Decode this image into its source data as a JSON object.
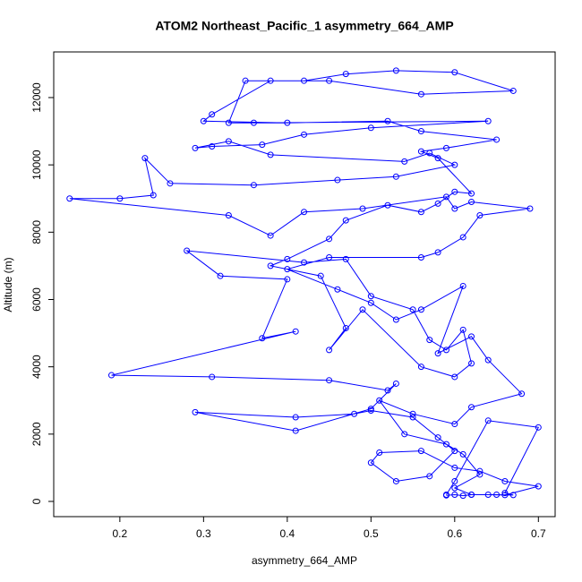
{
  "chart_data": {
    "type": "line",
    "title": "ATOM2 Northeast_Pacific_1 asymmetry_664_AMP",
    "x_label": "asymmetry_664_AMP",
    "y_label": "Altitude (m)",
    "color": "#0000ff",
    "markers": true,
    "grid": false,
    "xlim": [
      0.121,
      0.72
    ],
    "ylim": [
      -452,
      13356
    ],
    "xticks": [
      0.2,
      0.3,
      0.4,
      0.5,
      0.6,
      0.7
    ],
    "yticks": [
      0,
      2000,
      4000,
      6000,
      8000,
      10000,
      12000
    ],
    "x": [
      0.59,
      0.6,
      0.61,
      0.62,
      0.64,
      0.66,
      0.7,
      0.66,
      0.63,
      0.6,
      0.56,
      0.51,
      0.5,
      0.53,
      0.57,
      0.6,
      0.58,
      0.55,
      0.5,
      0.48,
      0.41,
      0.29,
      0.41,
      0.5,
      0.53,
      0.52,
      0.45,
      0.31,
      0.19,
      0.41,
      0.37,
      0.4,
      0.32,
      0.28,
      0.42,
      0.47,
      0.5,
      0.55,
      0.57,
      0.59,
      0.61,
      0.62,
      0.6,
      0.56,
      0.49,
      0.45,
      0.47,
      0.44,
      0.38,
      0.4,
      0.45,
      0.47,
      0.52,
      0.56,
      0.58,
      0.6,
      0.62,
      0.58,
      0.56,
      0.59,
      0.65,
      0.56,
      0.52,
      0.4,
      0.3,
      0.31,
      0.38,
      0.45,
      0.56,
      0.67,
      0.6,
      0.53,
      0.47,
      0.42,
      0.35,
      0.33,
      0.36,
      0.64,
      0.5,
      0.42,
      0.37,
      0.31,
      0.29,
      0.33,
      0.38,
      0.54,
      0.57,
      0.6,
      0.53,
      0.46,
      0.36,
      0.26,
      0.23,
      0.24,
      0.2,
      0.14,
      0.33,
      0.38,
      0.42,
      0.49,
      0.59,
      0.6,
      0.62,
      0.69,
      0.63,
      0.61,
      0.58,
      0.56,
      0.45,
      0.4,
      0.46,
      0.5,
      0.53,
      0.56,
      0.61,
      0.58,
      0.62,
      0.64,
      0.68,
      0.62,
      0.6,
      0.55,
      0.51,
      0.54,
      0.59,
      0.61,
      0.63,
      0.6,
      0.62,
      0.65,
      0.67,
      0.66,
      0.7,
      0.64,
      0.6,
      0.59
    ],
    "values": [
      180,
      200,
      170,
      200,
      200,
      190,
      450,
      600,
      900,
      1000,
      1500,
      1450,
      1150,
      600,
      750,
      1500,
      1900,
      2500,
      2700,
      2600,
      2500,
      2650,
      2100,
      2750,
      3500,
      3300,
      3600,
      3700,
      3750,
      5050,
      4850,
      6600,
      6700,
      7450,
      7100,
      7200,
      6100,
      5700,
      4800,
      4500,
      5100,
      4100,
      3700,
      4000,
      5700,
      4500,
      5150,
      6700,
      7000,
      7200,
      7800,
      8350,
      8800,
      8600,
      8850,
      9200,
      9150,
      10200,
      10400,
      10500,
      10750,
      11000,
      11300,
      11250,
      11300,
      11500,
      12500,
      12500,
      12100,
      12200,
      12750,
      12800,
      12700,
      12500,
      12500,
      11250,
      11250,
      11300,
      11100,
      10900,
      10600,
      10550,
      10500,
      10700,
      10300,
      10100,
      10350,
      10000,
      9650,
      9550,
      9400,
      9450,
      10200,
      9100,
      9000,
      9000,
      8500,
      7900,
      8600,
      8700,
      9050,
      8700,
      8900,
      8700,
      8500,
      7850,
      7400,
      7250,
      7250,
      6900,
      6300,
      5900,
      5400,
      5700,
      6400,
      4400,
      4900,
      4200,
      3200,
      2800,
      2300,
      2600,
      3000,
      2000,
      1700,
      1400,
      800,
      400,
      200,
      200,
      190,
      250,
      2200,
      2400,
      600,
      200
    ]
  }
}
